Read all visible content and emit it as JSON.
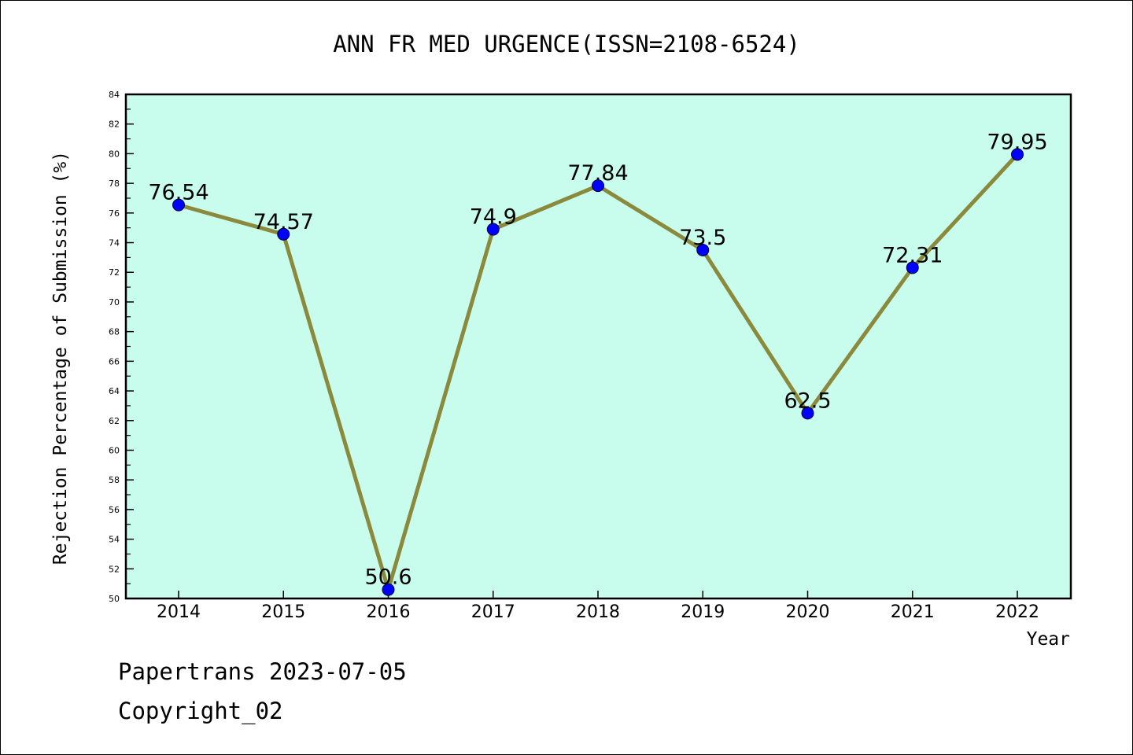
{
  "footer": {
    "line1": "Papertrans 2023-07-05",
    "line2": "Copyright_02"
  },
  "chart_data": {
    "type": "line",
    "title": "ANN FR MED URGENCE(ISSN=2108-6524)",
    "xlabel": "Year",
    "ylabel": "Rejection Percentage of Submission (%)",
    "categories": [
      "2014",
      "2015",
      "2016",
      "2017",
      "2018",
      "2019",
      "2020",
      "2021",
      "2022"
    ],
    "series": [
      {
        "values": [
          76.54,
          74.57,
          50.6,
          74.9,
          77.84,
          73.5,
          62.5,
          72.31,
          79.95
        ],
        "labels": [
          "76.54",
          "74.57",
          "50.6",
          "74.9",
          "77.84",
          "73.5",
          "62.5",
          "72.31",
          "79.95"
        ]
      }
    ],
    "ylim": [
      50,
      84
    ],
    "yticks": [
      50,
      52,
      54,
      56,
      58,
      60,
      62,
      64,
      66,
      68,
      70,
      72,
      74,
      76,
      78,
      80,
      82,
      84
    ],
    "grid": false,
    "colors": {
      "plot_background": "#c8fdee",
      "line": "#8b8a3c",
      "marker": "#0000ff",
      "axis": "#000000"
    }
  }
}
